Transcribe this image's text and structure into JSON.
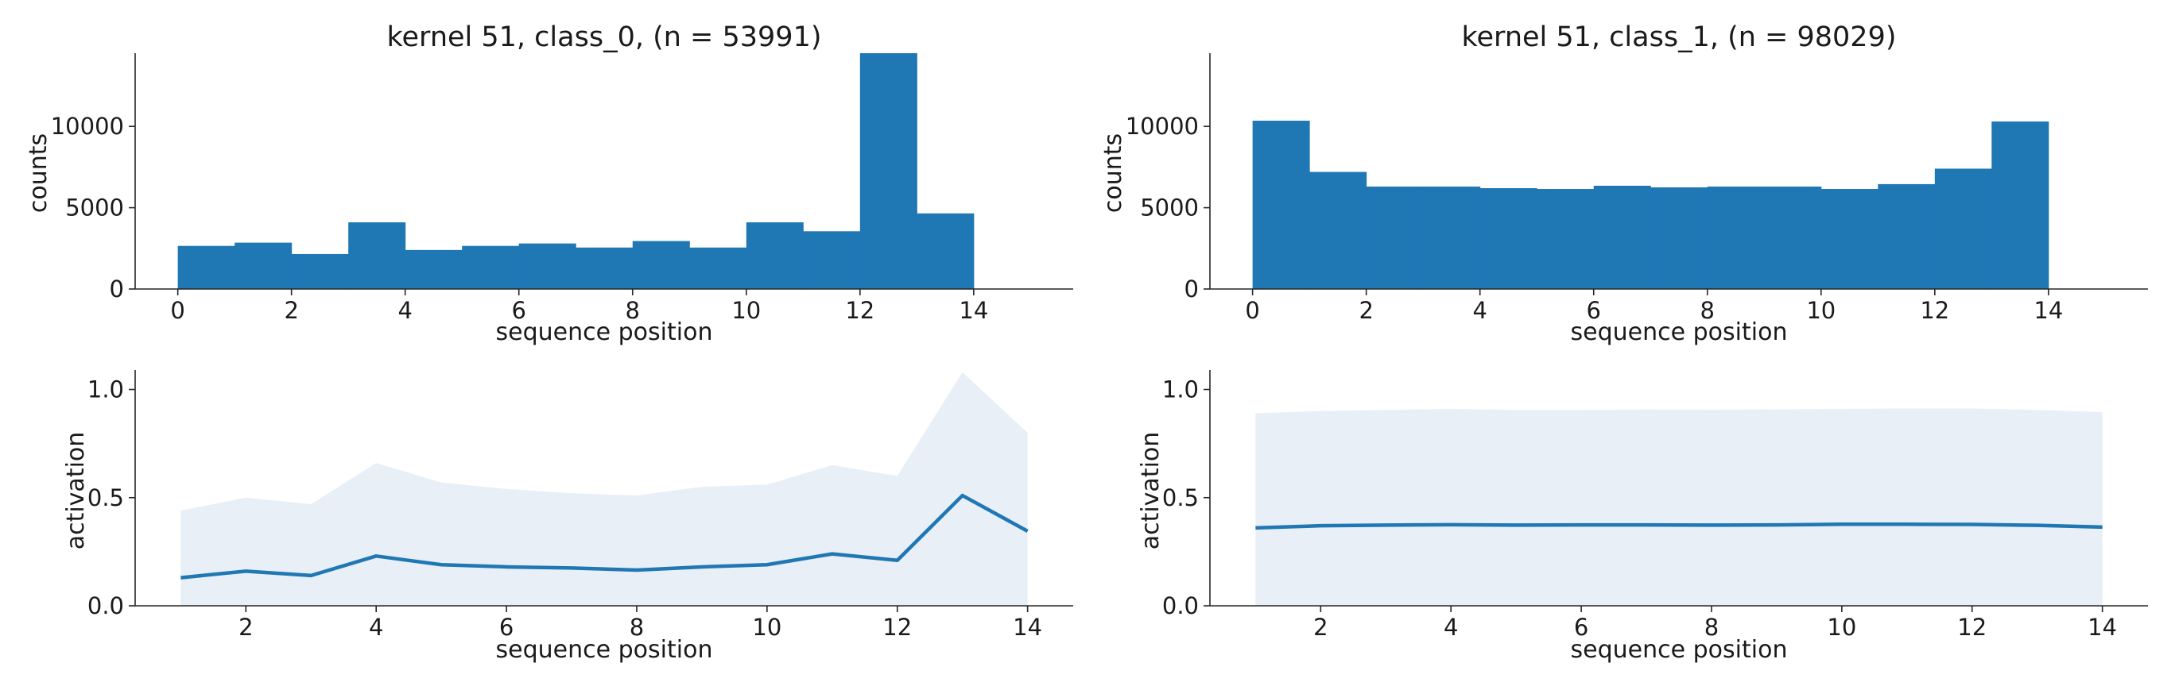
{
  "chart_data": [
    {
      "id": "hist-class0",
      "type": "bar",
      "title": "kernel 51, class_0, (n = 53991)",
      "xlabel": "sequence position",
      "ylabel": "counts",
      "xlim": [
        -0.75,
        15.75
      ],
      "ylim": [
        0,
        14500
      ],
      "xticks": [
        0,
        2,
        4,
        6,
        8,
        10,
        12,
        14
      ],
      "yticks": [
        0,
        5000,
        10000
      ],
      "bin_edges": [
        0,
        1,
        2,
        3,
        4,
        5,
        6,
        7,
        8,
        9,
        10,
        11,
        12,
        13,
        14
      ],
      "values": [
        2650,
        2850,
        2150,
        4100,
        2400,
        2650,
        2800,
        2550,
        2950,
        2550,
        4100,
        3550,
        14500,
        4650
      ],
      "color": "#1f77b4",
      "grid": false
    },
    {
      "id": "hist-class1",
      "type": "bar",
      "title": "kernel 51, class_1, (n = 98029)",
      "xlabel": "sequence position",
      "ylabel": "counts",
      "xlim": [
        -0.75,
        15.75
      ],
      "ylim": [
        0,
        14500
      ],
      "xticks": [
        0,
        2,
        4,
        6,
        8,
        10,
        12,
        14
      ],
      "yticks": [
        0,
        5000,
        10000
      ],
      "bin_edges": [
        0,
        1,
        2,
        3,
        4,
        5,
        6,
        7,
        8,
        9,
        10,
        11,
        12,
        13,
        14
      ],
      "values": [
        10350,
        7200,
        6300,
        6300,
        6200,
        6150,
        6350,
        6250,
        6300,
        6300,
        6150,
        6450,
        7400,
        10300
      ],
      "color": "#1f77b4",
      "grid": false
    },
    {
      "id": "line-class0",
      "type": "area",
      "title": "",
      "xlabel": "sequence position",
      "ylabel": "activation",
      "xlim": [
        0.3,
        14.7
      ],
      "ylim": [
        0,
        1.09
      ],
      "xticks": [
        2,
        4,
        6,
        8,
        10,
        12,
        14
      ],
      "yticks": [
        0.0,
        0.5,
        1.0
      ],
      "ytick_labels": [
        "0.0",
        "0.5",
        "1.0"
      ],
      "x": [
        1,
        2,
        3,
        4,
        5,
        6,
        7,
        8,
        9,
        10,
        11,
        12,
        13,
        14
      ],
      "mean": [
        0.13,
        0.16,
        0.14,
        0.23,
        0.19,
        0.18,
        0.175,
        0.165,
        0.18,
        0.19,
        0.24,
        0.21,
        0.51,
        0.345
      ],
      "upper": [
        0.44,
        0.5,
        0.47,
        0.66,
        0.57,
        0.54,
        0.52,
        0.51,
        0.55,
        0.56,
        0.65,
        0.6,
        1.08,
        0.8
      ],
      "lower": [
        0,
        0,
        0,
        0,
        0,
        0,
        0,
        0,
        0,
        0,
        0,
        0,
        0,
        0
      ],
      "line_color": "#1f77b4",
      "band_color": "#e8eff7",
      "grid": false
    },
    {
      "id": "line-class1",
      "type": "area",
      "title": "",
      "xlabel": "sequence position",
      "ylabel": "activation",
      "xlim": [
        0.3,
        14.7
      ],
      "ylim": [
        0,
        1.09
      ],
      "xticks": [
        2,
        4,
        6,
        8,
        10,
        12,
        14
      ],
      "yticks": [
        0.0,
        0.5,
        1.0
      ],
      "ytick_labels": [
        "0.0",
        "0.5",
        "1.0"
      ],
      "x": [
        1,
        2,
        3,
        4,
        5,
        6,
        7,
        8,
        9,
        10,
        11,
        12,
        13,
        14
      ],
      "mean": [
        0.36,
        0.37,
        0.373,
        0.375,
        0.373,
        0.374,
        0.374,
        0.373,
        0.374,
        0.377,
        0.377,
        0.376,
        0.372,
        0.364
      ],
      "upper": [
        0.89,
        0.9,
        0.905,
        0.91,
        0.905,
        0.905,
        0.907,
        0.906,
        0.908,
        0.91,
        0.912,
        0.912,
        0.905,
        0.895
      ],
      "lower": [
        0,
        0,
        0,
        0,
        0,
        0,
        0,
        0,
        0,
        0,
        0,
        0,
        0,
        0
      ],
      "line_color": "#1f77b4",
      "band_color": "#e8eff7",
      "grid": false
    }
  ]
}
